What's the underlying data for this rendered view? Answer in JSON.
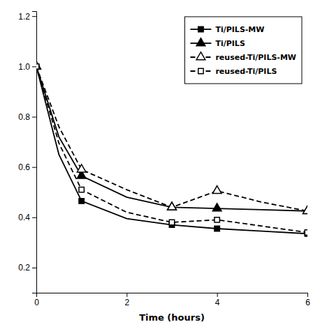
{
  "chart_data": {
    "type": "line",
    "x_label": "Time (hours)",
    "x": [
      0,
      0.5,
      1,
      2,
      3,
      4,
      5,
      6
    ],
    "series": [
      {
        "name": "Ti/PILS-MW",
        "color": "#000000",
        "line_style": "solid",
        "marker": "filled-square",
        "values": [
          1.0,
          0.65,
          0.465,
          0.395,
          0.37,
          0.355,
          0.345,
          0.335
        ],
        "marker_x": [
          0,
          1,
          3,
          4,
          6
        ]
      },
      {
        "name": "Ti/PILS",
        "color": "#000000",
        "line_style": "solid",
        "marker": "filled-triangle",
        "values": [
          1.0,
          0.72,
          0.565,
          0.48,
          0.44,
          0.435,
          0.43,
          0.425
        ],
        "marker_x": [
          0,
          1,
          3,
          4,
          6
        ]
      },
      {
        "name": "reused-Ti/PILS-MW",
        "color": "#000000",
        "line_style": "dashed",
        "marker": "open-triangle",
        "values": [
          1.0,
          0.76,
          0.59,
          0.51,
          0.44,
          0.505,
          0.46,
          0.425
        ],
        "marker_x": [
          0,
          1,
          3,
          4,
          6
        ]
      },
      {
        "name": "reused-Ti/PILS",
        "color": "#000000",
        "line_style": "dashed",
        "marker": "open-square",
        "values": [
          1.0,
          0.695,
          0.51,
          0.42,
          0.38,
          0.39,
          0.365,
          0.34
        ],
        "marker_x": [
          0,
          1,
          3,
          4,
          6
        ]
      }
    ],
    "xlim": [
      0,
      6
    ],
    "xticks": [
      0,
      2,
      4,
      6
    ],
    "ylim": [
      0.1,
      1.22
    ],
    "yticks": [
      0.2,
      0.4,
      0.6,
      0.8,
      {
        "value": 1.0,
        "label": "1.0"
      },
      1.2
    ],
    "grid": false,
    "legend": "upper right"
  }
}
